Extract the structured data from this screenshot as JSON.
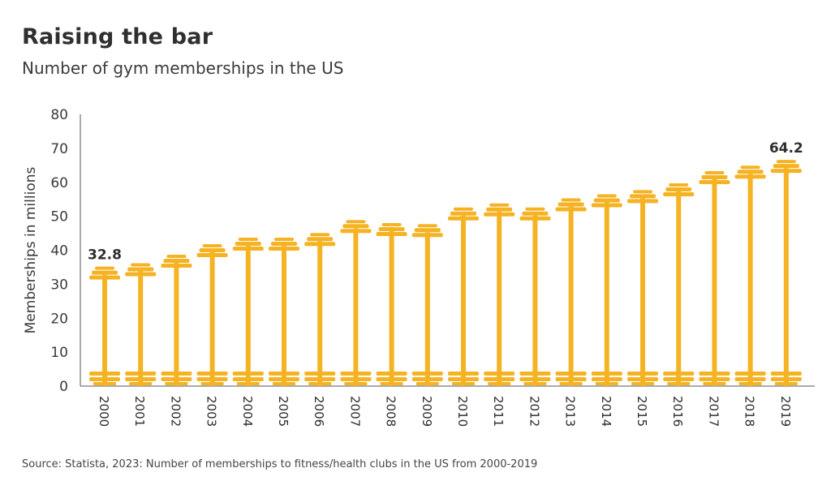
{
  "title": "Raising the bar",
  "subtitle": "Number of gym memberships in the US",
  "source": "Source: Statista, 2023: Number of memberships to fitness/health clubs in the US from 2000-2019",
  "colors": {
    "bar": "#f5b324",
    "text": "#2f2f2f"
  },
  "chart_data": {
    "type": "bar",
    "title": "Raising the bar",
    "subtitle": "Number of gym memberships in the US",
    "xlabel": "",
    "ylabel": "Memberships in millions",
    "ylim": [
      0,
      80
    ],
    "yticks": [
      0,
      10,
      20,
      30,
      40,
      50,
      60,
      70,
      80
    ],
    "grid": false,
    "categories": [
      "2000",
      "2001",
      "2002",
      "2003",
      "2004",
      "2005",
      "2006",
      "2007",
      "2008",
      "2009",
      "2010",
      "2011",
      "2012",
      "2013",
      "2014",
      "2015",
      "2016",
      "2017",
      "2018",
      "2019"
    ],
    "values": [
      32.8,
      33.8,
      36.3,
      39.4,
      41.3,
      41.3,
      42.7,
      46.5,
      45.6,
      45.3,
      50.2,
      51.4,
      50.2,
      52.9,
      54.1,
      55.3,
      57.3,
      60.9,
      62.5,
      64.2
    ],
    "data_labels": [
      {
        "category": "2000",
        "text": "32.8"
      },
      {
        "category": "2019",
        "text": "64.2"
      }
    ]
  }
}
